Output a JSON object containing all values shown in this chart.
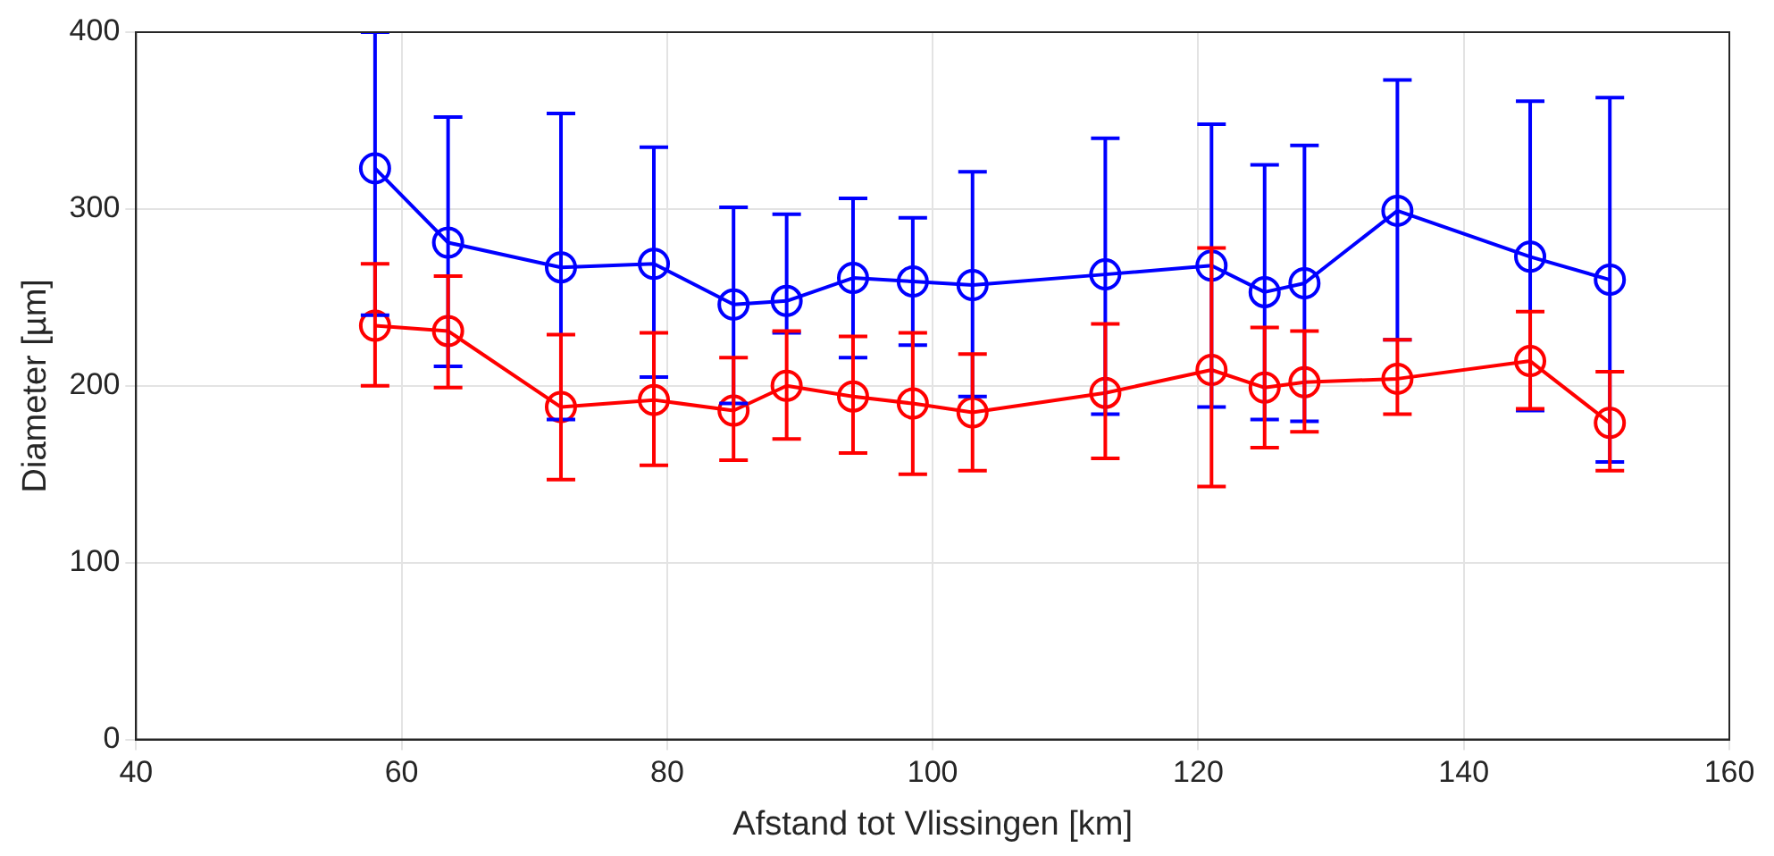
{
  "chart_data": {
    "type": "line",
    "xlabel": "Afstand tot Vlissingen [km]",
    "ylabel": "Diameter [µm]",
    "x": [
      58,
      63.5,
      72,
      79,
      85,
      89,
      94,
      98.5,
      103,
      113,
      121,
      125,
      128,
      135,
      145,
      151
    ],
    "series": [
      {
        "color": "#0000ff",
        "values": [
          323,
          281,
          267,
          269,
          246,
          248,
          261,
          259,
          257,
          263,
          268,
          253,
          258,
          299,
          273,
          260
        ],
        "errors": [
          [
            240,
            400
          ],
          [
            211,
            352
          ],
          [
            181,
            354
          ],
          [
            205,
            335
          ],
          [
            190,
            301
          ],
          [
            230,
            297
          ],
          [
            216,
            306
          ],
          [
            223,
            295
          ],
          [
            194,
            321
          ],
          [
            184,
            340
          ],
          [
            188,
            348
          ],
          [
            181,
            325
          ],
          [
            180,
            336
          ],
          [
            226,
            373
          ],
          [
            186,
            361
          ],
          [
            157,
            363
          ]
        ]
      },
      {
        "color": "#ff0000",
        "values": [
          234,
          231,
          188,
          192,
          186,
          200,
          194,
          190,
          185,
          196,
          209,
          199,
          202,
          204,
          214,
          179
        ],
        "errors": [
          [
            200,
            269
          ],
          [
            199,
            262
          ],
          [
            147,
            229
          ],
          [
            155,
            230
          ],
          [
            158,
            216
          ],
          [
            170,
            231
          ],
          [
            162,
            228
          ],
          [
            150,
            230
          ],
          [
            152,
            218
          ],
          [
            159,
            235
          ],
          [
            143,
            278
          ],
          [
            165,
            233
          ],
          [
            174,
            231
          ],
          [
            184,
            226
          ],
          [
            187,
            242
          ],
          [
            152,
            208
          ]
        ]
      }
    ],
    "xlim": [
      40,
      160
    ],
    "xticks": [
      40,
      60,
      80,
      100,
      120,
      140,
      160
    ],
    "ylim": [
      0,
      400
    ],
    "yticks": [
      0,
      100,
      200,
      300,
      400
    ],
    "grid": true,
    "legend": false,
    "marker": "circle",
    "line_style": "solid"
  }
}
